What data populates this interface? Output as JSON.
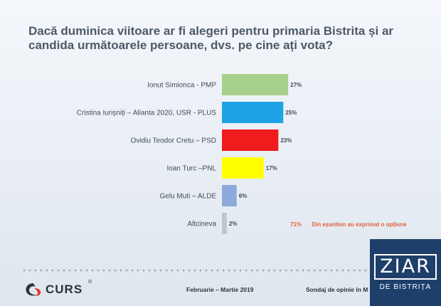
{
  "title": "Dacă duminica viitoare ar fi alegeri pentru primaria Bistrita și ar candida următoarele persoane, dvs. pe cine ați vota?",
  "chart_data": {
    "type": "bar",
    "orientation": "horizontal",
    "title": "Dacă duminica viitoare ar fi alegeri pentru primaria Bistrita și ar candida următoarele persoane, dvs. pe cine ați vota?",
    "categories": [
      "Ionut Simionca - PMP",
      "Cristina Iurișniți – Alianta 2020, USR - PLUS",
      "Ovidiu Teodor Cretu – PSD",
      "Ioan Turc –PNL",
      "Gelu Muti – ALDE",
      "Altcineva"
    ],
    "values": [
      27,
      25,
      23,
      17,
      6,
      2
    ],
    "value_labels": [
      "27%",
      "25%",
      "23%",
      "17%",
      "6%",
      "2%"
    ],
    "colors": [
      "#a8d08d",
      "#1fa3e6",
      "#ee1c1c",
      "#ffff00",
      "#8ea9db",
      "#c0c6cc"
    ],
    "xlim": [
      0,
      30
    ],
    "grid": false,
    "legend": "none"
  },
  "note": {
    "percent": "71%",
    "text": "Din eșantion au exprimat o opțiune"
  },
  "footer": {
    "logo": "CURS",
    "logo_mark": "®",
    "date": "Februarie – Martie 2019",
    "source": "Sondaj de opinie în M"
  },
  "badge": {
    "top": "ZIAR",
    "bottom": "DE BISTRIȚA"
  }
}
